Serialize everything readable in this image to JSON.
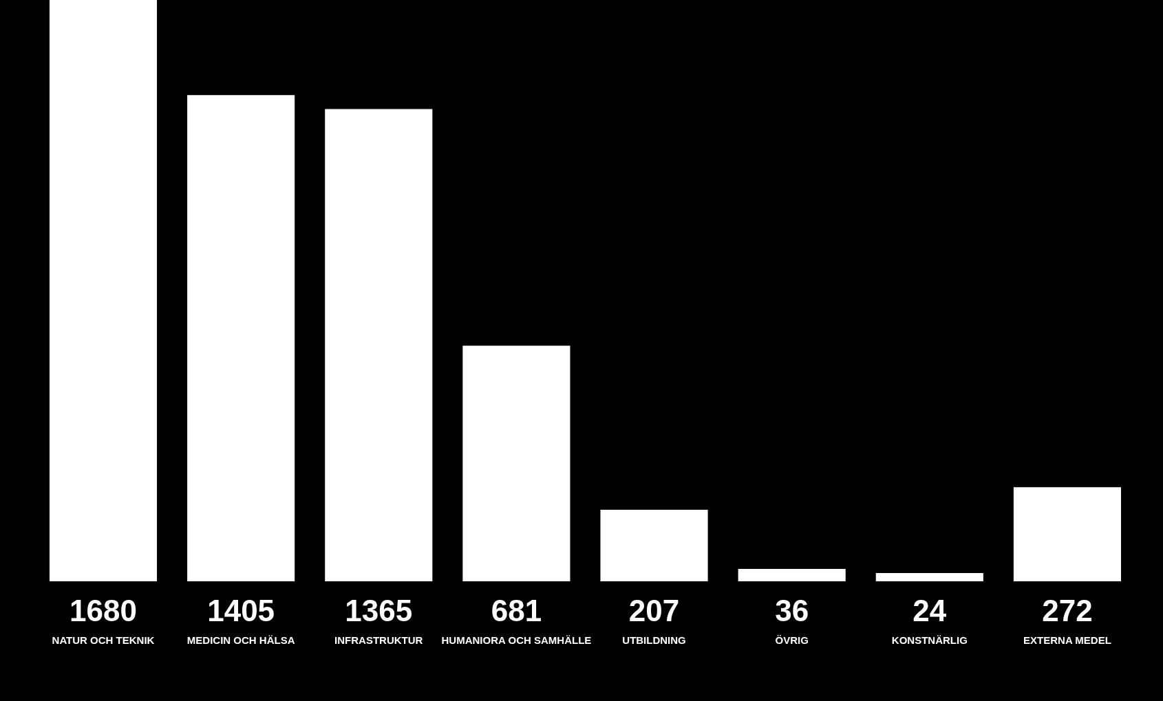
{
  "chart_data": {
    "type": "bar",
    "categories": [
      "NATUR OCH TEKNIK",
      "MEDICIN OCH HÄLSA",
      "INFRASTRUKTUR",
      "HUMANIORA OCH SAMHÄLLE",
      "UTBILDNING",
      "ÖVRIG",
      "KONSTNÄRLIG",
      "EXTERNA MEDEL"
    ],
    "values": [
      1680,
      1405,
      1365,
      681,
      207,
      36,
      24,
      272
    ],
    "color": "#ffffff",
    "ylim": [
      0,
      1680
    ],
    "tick_labels": "x",
    "data_labels": true
  }
}
